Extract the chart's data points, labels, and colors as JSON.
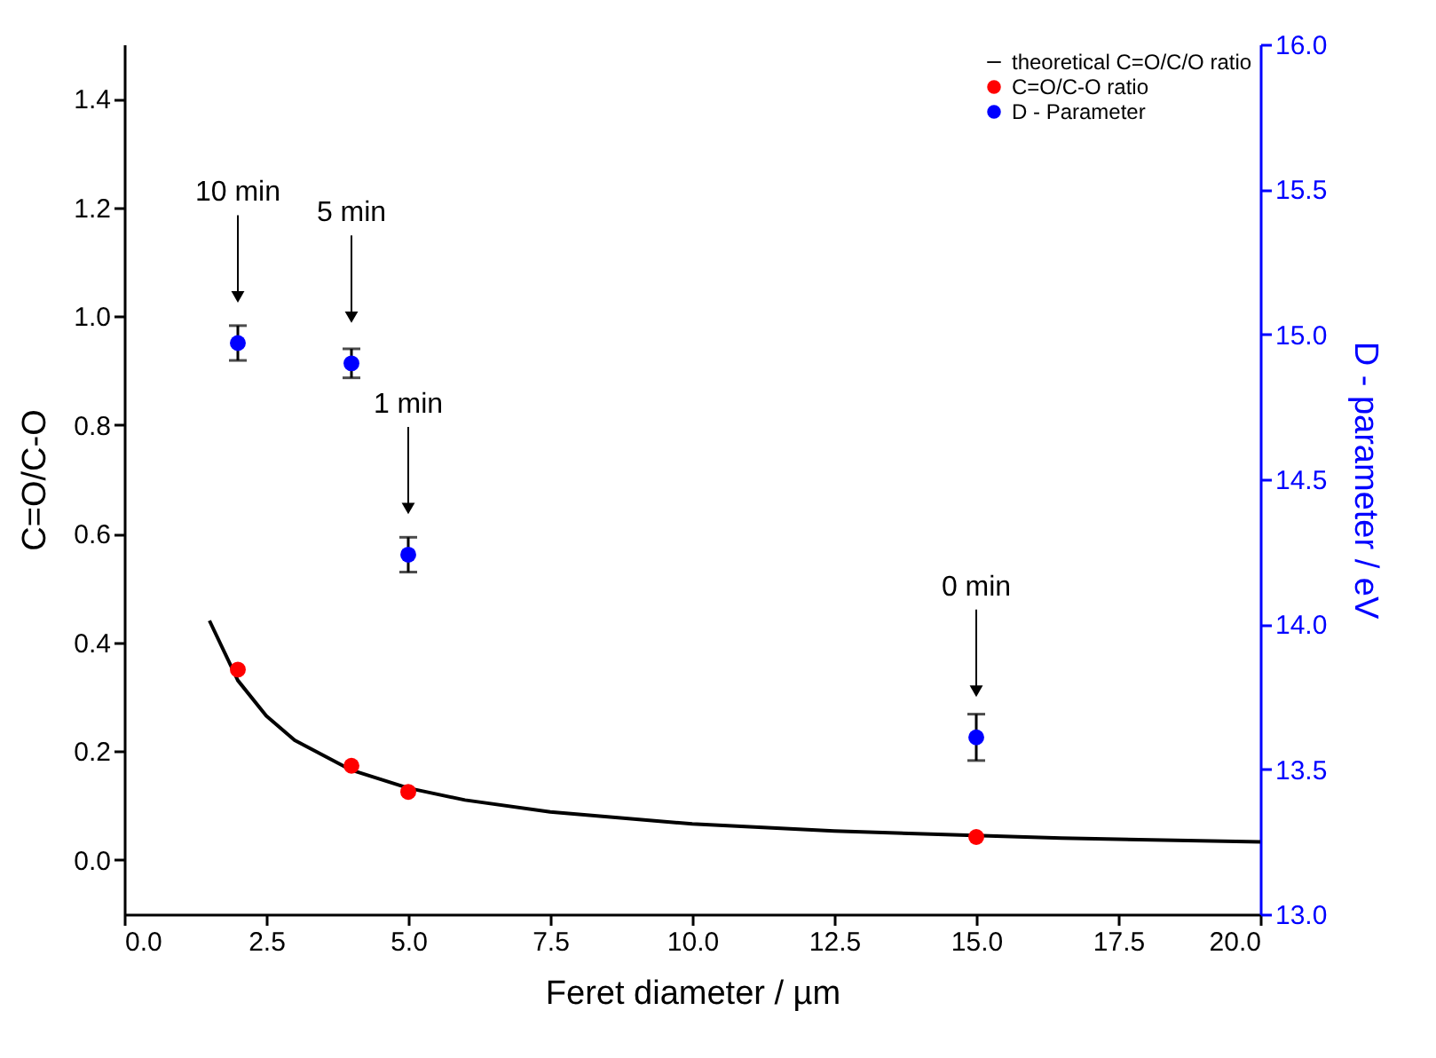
{
  "chart_data": {
    "type": "scatter",
    "xlabel": "Feret diameter / µm",
    "ylabel": "C=O/C-O",
    "y2label": "D - parameter / eV",
    "xlim": [
      0,
      20
    ],
    "xticks": [
      {
        "value": 0,
        "label": "0.0"
      },
      2.5,
      {
        "value": 5,
        "label": "5.0"
      },
      7.5,
      {
        "value": 10,
        "label": "10.0"
      },
      12.5,
      {
        "value": 15,
        "label": "15.0"
      },
      17.5,
      {
        "value": 20,
        "label": "20.0"
      }
    ],
    "ylim": [
      -0.1,
      1.5
    ],
    "yticks": [
      {
        "value": 0,
        "label": "0.0"
      },
      0.2,
      0.4,
      0.6,
      0.8,
      {
        "value": 1,
        "label": "1.0"
      },
      1.2,
      1.4
    ],
    "y2lim": [
      13,
      16
    ],
    "y2ticks": [
      {
        "value": 13,
        "label": "13.0"
      },
      13.5,
      {
        "value": 14,
        "label": "14.0"
      },
      14.5,
      {
        "value": 15,
        "label": "15.0"
      },
      15.5,
      {
        "value": 16,
        "label": "16.0"
      }
    ],
    "grid": false,
    "legend": "top right",
    "series": [
      {
        "name": "theoretical C=O/C/O ratio",
        "type": "line",
        "color": "#000000",
        "line_style": "solid",
        "marker": "none",
        "x": [
          1.5,
          2,
          2.5,
          3,
          4,
          5,
          6,
          7.5,
          10,
          12.5,
          16.5,
          20
        ],
        "values": [
          0.44,
          0.33,
          0.265,
          0.22,
          0.165,
          0.132,
          0.11,
          0.088,
          0.066,
          0.053,
          0.04,
          0.033
        ]
      },
      {
        "name": "C=O/C-O ratio",
        "color": "#ff0000",
        "marker": "circle",
        "x": [
          2,
          4,
          5,
          15
        ],
        "values": [
          0.35,
          0.173,
          0.125,
          0.042
        ]
      },
      {
        "name": "D - Parameter",
        "color": "#0000ff",
        "marker": "circle",
        "axis": "y2",
        "x": [
          2,
          4,
          5,
          15
        ],
        "values": [
          14.97,
          14.9,
          14.24,
          13.61
        ],
        "errors": [
          0.06,
          0.05,
          0.06,
          0.08
        ]
      }
    ],
    "annotations": [
      "10 min",
      "5 min",
      "1 min",
      "0 min"
    ]
  }
}
